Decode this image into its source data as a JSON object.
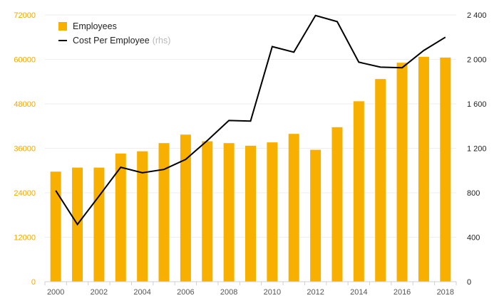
{
  "colors": {
    "bar": "#f8b000",
    "line": "#000000",
    "left_axis_text": "#f0a800",
    "grid": "#eeeeee",
    "axis": "#cfcfcf"
  },
  "chart_data": {
    "type": "bar+line",
    "title": "",
    "categories": [
      "2000",
      "2001",
      "2002",
      "2003",
      "2004",
      "2005",
      "2006",
      "2007",
      "2008",
      "2009",
      "2010",
      "2011",
      "2012",
      "2013",
      "2014",
      "2015",
      "2016",
      "2017",
      "2018"
    ],
    "x_tick_labels": [
      "2000",
      "2002",
      "2004",
      "2006",
      "2008",
      "2010",
      "2012",
      "2014",
      "2016",
      "2018"
    ],
    "series": [
      {
        "name": "Employees",
        "type": "bar",
        "axis": "left",
        "values": [
          29700,
          30800,
          30800,
          34600,
          35200,
          37400,
          39700,
          37900,
          37400,
          36700,
          37600,
          39900,
          35600,
          41700,
          48700,
          54700,
          59100,
          60700,
          60500
        ]
      },
      {
        "name": "Cost Per Employee",
        "name_suffix": "(rhs)",
        "type": "line",
        "axis": "right",
        "values": [
          820,
          515,
          770,
          1030,
          980,
          1010,
          1100,
          1270,
          1450,
          1445,
          2115,
          2065,
          2395,
          2340,
          1975,
          1930,
          1925,
          2080,
          2200
        ]
      }
    ],
    "y_left": {
      "min": 0,
      "max": 72000,
      "ticks": [
        0,
        12000,
        24000,
        36000,
        48000,
        60000,
        72000
      ],
      "tick_labels": [
        "0",
        "12000",
        "24000",
        "36000",
        "48000",
        "60000",
        "72000"
      ]
    },
    "y_right": {
      "min": 0,
      "max": 2400,
      "ticks": [
        0,
        400,
        800,
        1200,
        1600,
        2000,
        2400
      ],
      "tick_labels": [
        "0",
        "400",
        "800",
        "1 200",
        "1 600",
        "2 000",
        "2 400"
      ]
    },
    "grid": true,
    "legend_position": "top-left"
  }
}
